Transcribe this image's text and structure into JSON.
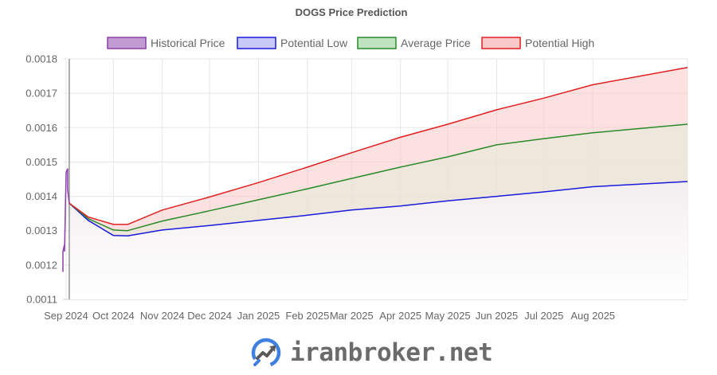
{
  "watermark": {
    "text": "iranbroker.net",
    "logo_color": "#3f7fe0"
  },
  "chart_data": {
    "type": "line",
    "title": "DOGS Price Prediction",
    "legend_position": "top",
    "grid": true,
    "ylim": [
      0.0011,
      0.0018
    ],
    "xlim": [
      "2024-08-30",
      "2025-09-30"
    ],
    "y_ticks": [
      "0.0011",
      "0.0012",
      "0.0013",
      "0.0014",
      "0.0015",
      "0.0016",
      "0.0017",
      "0.0018"
    ],
    "x_ticks": [
      {
        "label": "Sep 2024",
        "date": "2024-09-01"
      },
      {
        "label": "Oct 2024",
        "date": "2024-10-01"
      },
      {
        "label": "Nov 2024",
        "date": "2024-11-01"
      },
      {
        "label": "Dec 2024",
        "date": "2024-12-01"
      },
      {
        "label": "Jan 2025",
        "date": "2025-01-01"
      },
      {
        "label": "Feb 2025",
        "date": "2025-02-01"
      },
      {
        "label": "Mar 2025",
        "date": "2025-03-01"
      },
      {
        "label": "Apr 2025",
        "date": "2025-04-01"
      },
      {
        "label": "May 2025",
        "date": "2025-05-01"
      },
      {
        "label": "Jun 2025",
        "date": "2025-06-01"
      },
      {
        "label": "Jul 2025",
        "date": "2025-07-01"
      },
      {
        "label": "Aug 2025",
        "date": "2025-08-01"
      }
    ],
    "marker_line": {
      "date": "2024-09-03",
      "color": "#999999"
    },
    "series": [
      {
        "name": "Historical Price",
        "color": "#8b3fa8",
        "fill": "#c39bd3",
        "points": [
          [
            "2024-08-30",
            0.00118
          ],
          [
            "2024-08-30",
            0.00124
          ],
          [
            "2024-08-31",
            0.00126
          ],
          [
            "2024-08-31",
            0.00124
          ],
          [
            "2024-09-01",
            0.00147
          ],
          [
            "2024-09-02",
            0.00148
          ],
          [
            "2024-09-02",
            0.00142
          ],
          [
            "2024-09-03",
            0.00138
          ]
        ]
      },
      {
        "name": "Potential Low",
        "color": "#1a1adb",
        "fill": "#c9c9f5",
        "points": [
          [
            "2024-09-03",
            0.00138
          ],
          [
            "2024-09-15",
            0.00133
          ],
          [
            "2024-10-01",
            0.001286
          ],
          [
            "2024-10-10",
            0.001285
          ],
          [
            "2024-11-01",
            0.001302
          ],
          [
            "2024-12-01",
            0.001315
          ],
          [
            "2025-01-01",
            0.00133
          ],
          [
            "2025-02-01",
            0.001345
          ],
          [
            "2025-03-01",
            0.00136
          ],
          [
            "2025-04-01",
            0.001372
          ],
          [
            "2025-05-01",
            0.001387
          ],
          [
            "2025-06-01",
            0.0014
          ],
          [
            "2025-07-01",
            0.001413
          ],
          [
            "2025-08-01",
            0.001428
          ],
          [
            "2025-09-30",
            0.001443
          ]
        ]
      },
      {
        "name": "Average Price",
        "color": "#2a8a2a",
        "fill": "#bfe3bf",
        "points": [
          [
            "2024-09-03",
            0.00138
          ],
          [
            "2024-09-15",
            0.001335
          ],
          [
            "2024-10-01",
            0.001302
          ],
          [
            "2024-10-10",
            0.0013
          ],
          [
            "2024-11-01",
            0.001328
          ],
          [
            "2024-12-01",
            0.001358
          ],
          [
            "2025-01-01",
            0.00139
          ],
          [
            "2025-02-01",
            0.001422
          ],
          [
            "2025-03-01",
            0.001452
          ],
          [
            "2025-04-01",
            0.001485
          ],
          [
            "2025-05-01",
            0.001515
          ],
          [
            "2025-06-01",
            0.00155
          ],
          [
            "2025-07-01",
            0.001568
          ],
          [
            "2025-08-01",
            0.001585
          ],
          [
            "2025-09-30",
            0.00161
          ]
        ]
      },
      {
        "name": "Potential High",
        "color": "#e02020",
        "fill": "#f9c9c9",
        "points": [
          [
            "2024-09-03",
            0.00138
          ],
          [
            "2024-09-15",
            0.00134
          ],
          [
            "2024-10-01",
            0.001318
          ],
          [
            "2024-10-10",
            0.001318
          ],
          [
            "2024-11-01",
            0.00136
          ],
          [
            "2024-12-01",
            0.001398
          ],
          [
            "2025-01-01",
            0.00144
          ],
          [
            "2025-02-01",
            0.001485
          ],
          [
            "2025-03-01",
            0.001527
          ],
          [
            "2025-04-01",
            0.001572
          ],
          [
            "2025-05-01",
            0.00161
          ],
          [
            "2025-06-01",
            0.001652
          ],
          [
            "2025-07-01",
            0.001686
          ],
          [
            "2025-08-01",
            0.001725
          ],
          [
            "2025-09-30",
            0.001775
          ]
        ]
      }
    ]
  }
}
